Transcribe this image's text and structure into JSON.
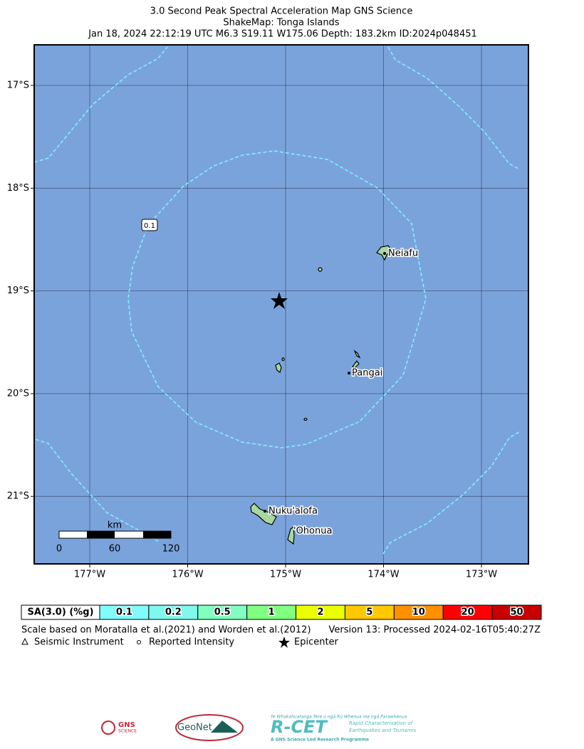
{
  "header": {
    "title": "3.0 Second Peak Spectral Acceleration Map GNS Science",
    "subtitle": "ShakeMap: Tonga Islands",
    "event": "Jan 18, 2024 22:12:19 UTC M6.3 S19.11 W175.06 Depth: 183.2km ID:2024p048451"
  },
  "map": {
    "lon_ticks": [
      "177°W",
      "176°W",
      "175°W",
      "174°W",
      "173°W"
    ],
    "lat_ticks": [
      "17°S",
      "18°S",
      "19°S",
      "20°S",
      "21°S"
    ],
    "places": [
      "Neiafu",
      "Pangai",
      "Nuku'alofa",
      "'Ohonua"
    ],
    "contour_label": "0.1",
    "scale_bar": {
      "unit": "km",
      "labels": [
        0,
        60,
        120
      ]
    }
  },
  "legend": {
    "header": "SA(3.0) (%g)",
    "cells": [
      {
        "value": 0.1,
        "color": "#80fcfc"
      },
      {
        "value": 0.2,
        "color": "#80f8ec"
      },
      {
        "value": 0.5,
        "color": "#80ffc0"
      },
      {
        "value": 1,
        "color": "#80ff80"
      },
      {
        "value": 2,
        "color": "#eaff00"
      },
      {
        "value": 5,
        "color": "#ffc800"
      },
      {
        "value": 10,
        "color": "#ff9000"
      },
      {
        "value": 20,
        "color": "#ff0000"
      },
      {
        "value": 50,
        "color": "#c80000"
      }
    ]
  },
  "footer": {
    "scale_note": "Scale based on Moratalla et al.(2021) and Worden et al.(2012)",
    "version": "Version 13: Processed 2024-02-16T05:40:27Z",
    "symbols": [
      "Seismic Instrument",
      "Reported Intensity",
      "Epicenter"
    ]
  },
  "logos": {
    "gns": "GNS",
    "gns_sub": "SCIENCE",
    "geonet": "GeoNet",
    "rcet": "R-CET",
    "rcet_tag": "Te Whakahuatanga Tere o ngā Rū Whenua me ngā Parawhenua",
    "rcet_desc1": "Rapid Characterisation of",
    "rcet_desc2": "Earthquakes and Tsunamis",
    "rcet_sub": "A GNS Science Led Research Programme"
  }
}
